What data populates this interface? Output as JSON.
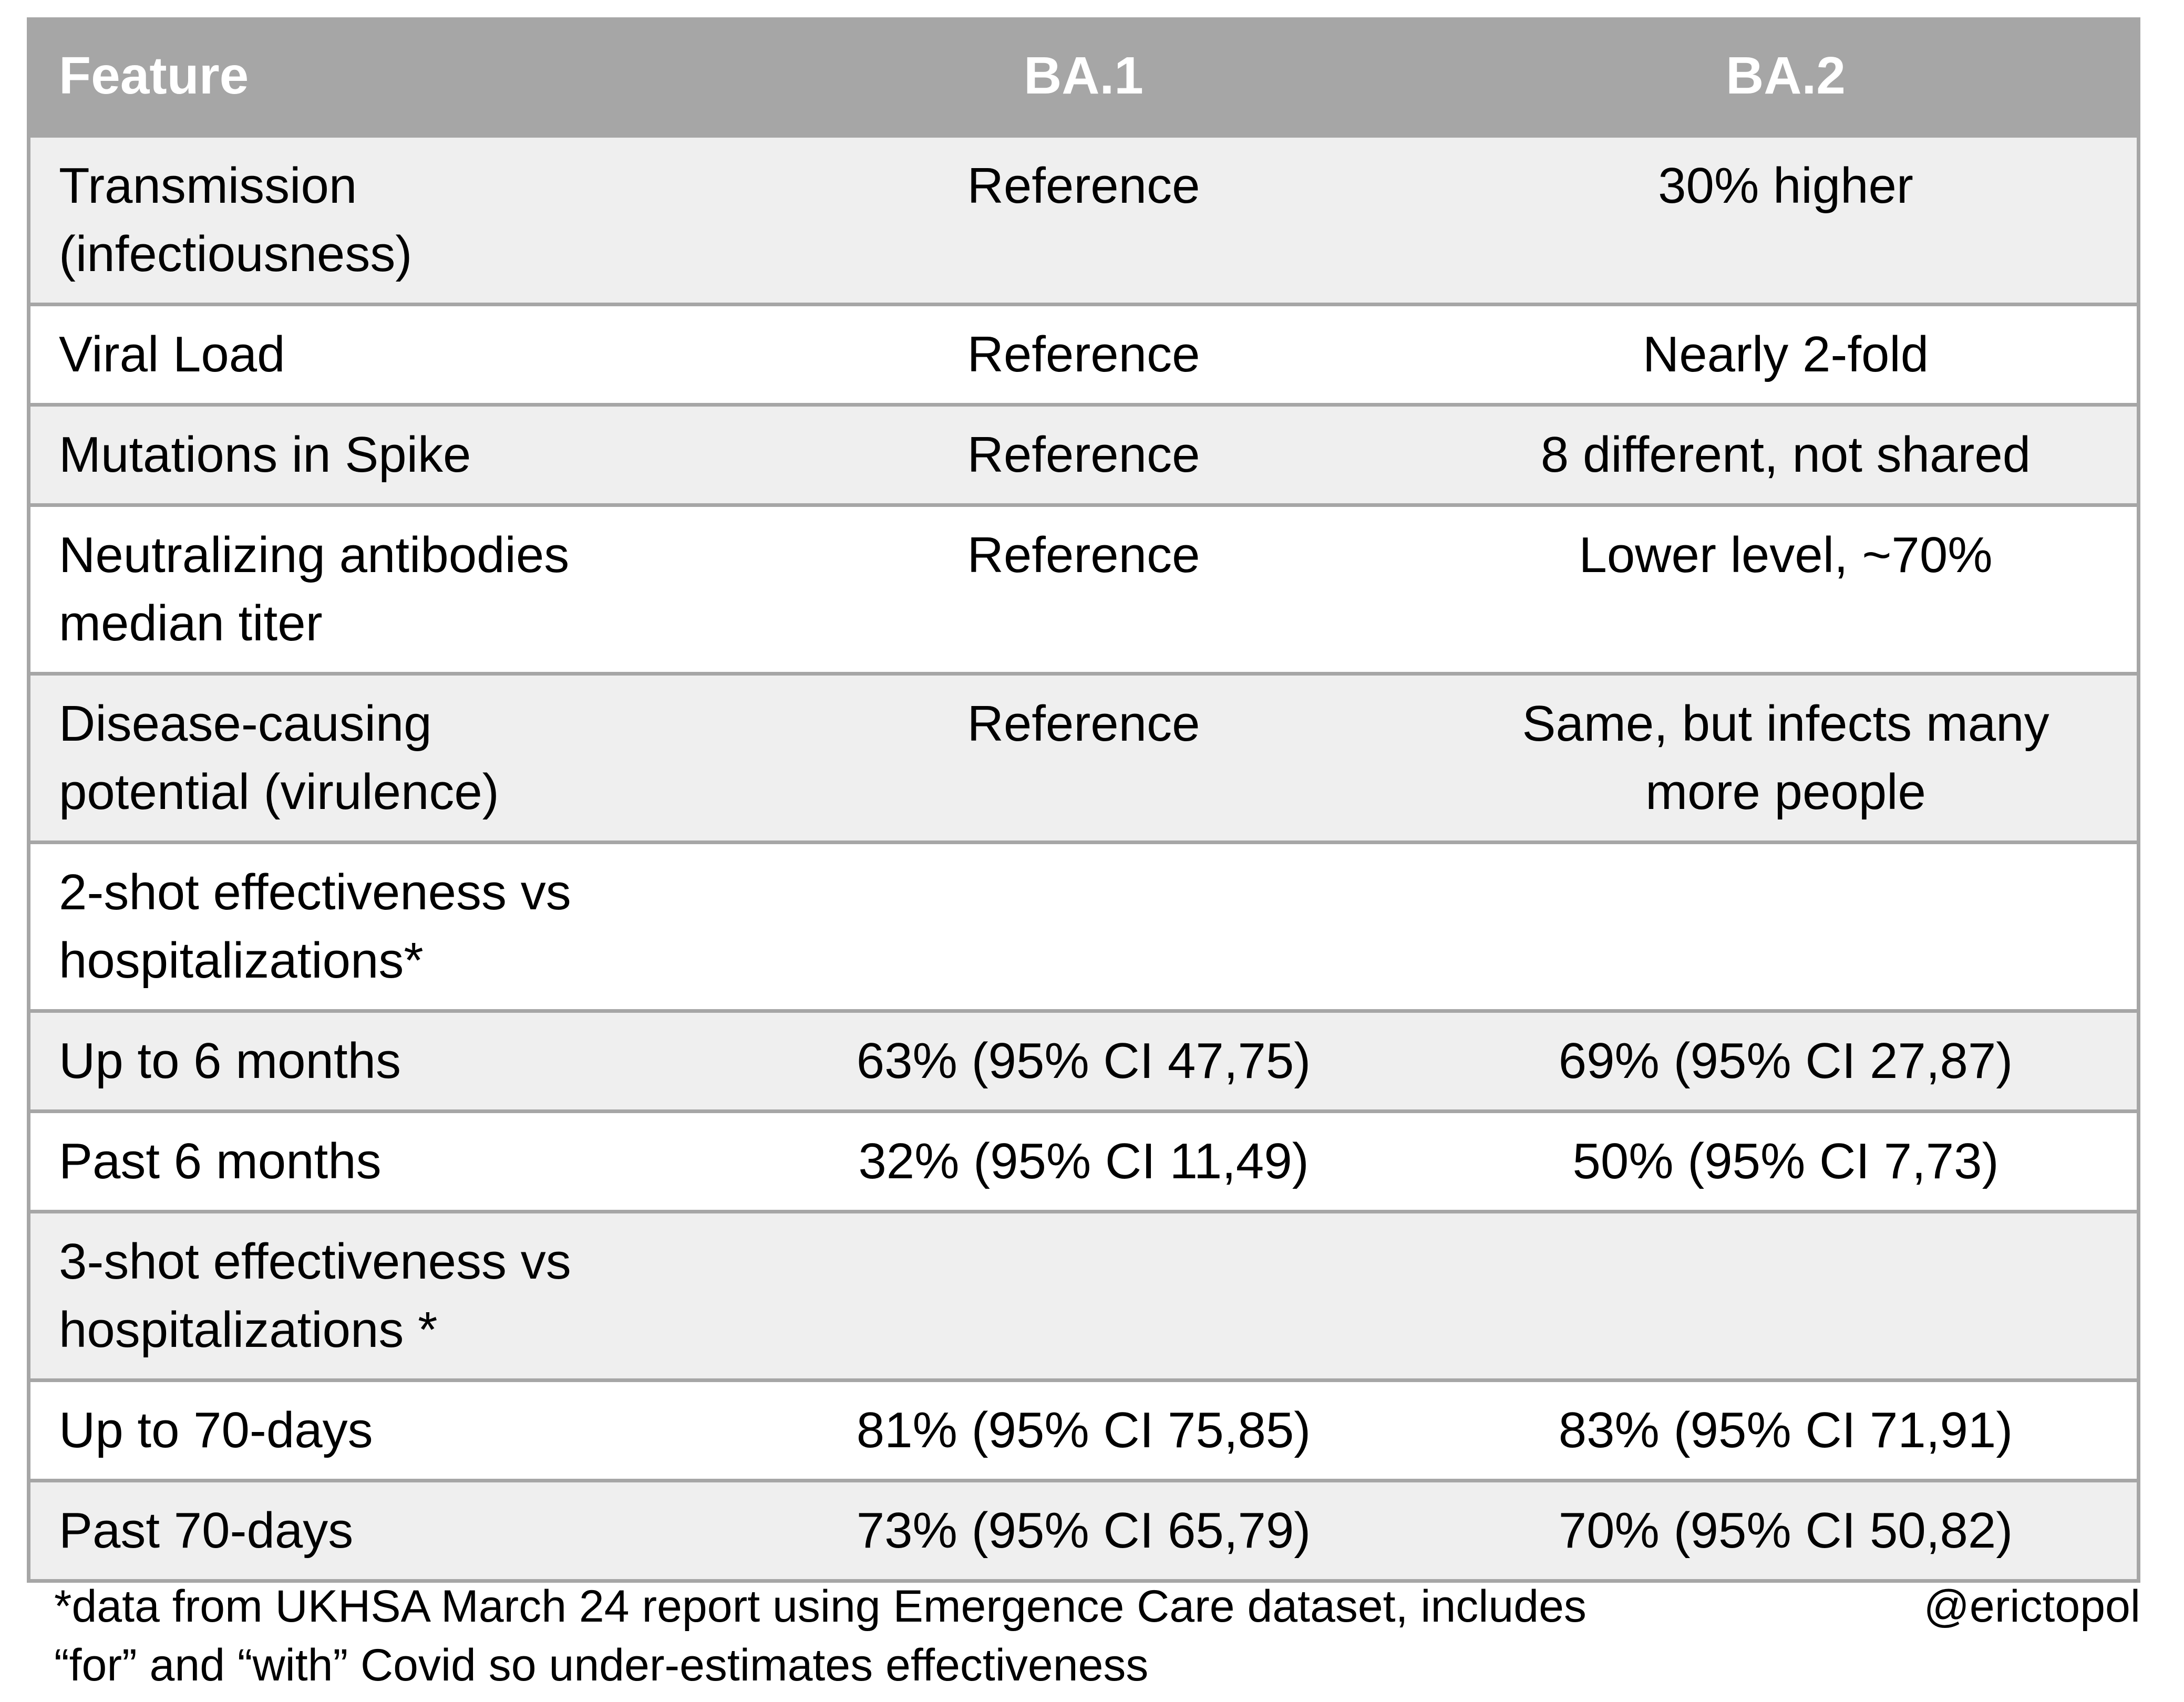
{
  "table": {
    "columns": [
      "Feature",
      "BA.1",
      "BA.2"
    ],
    "rows": [
      {
        "feature": "Transmission\n(infectiousness)",
        "ba1": "Reference",
        "ba2": "30% higher"
      },
      {
        "feature": "Viral Load",
        "ba1": "Reference",
        "ba2": "Nearly 2-fold"
      },
      {
        "feature": "Mutations in Spike",
        "ba1": "Reference",
        "ba2": "8 different, not shared"
      },
      {
        "feature": "Neutralizing antibodies\nmedian titer",
        "ba1": "Reference",
        "ba2": "Lower level, ~70%"
      },
      {
        "feature": "Disease-causing\npotential (virulence)",
        "ba1": "Reference",
        "ba2": "Same, but infects many\nmore people"
      },
      {
        "feature": "2-shot effectiveness vs\nhospitalizations*",
        "ba1": "",
        "ba2": ""
      },
      {
        "feature": "Up to 6 months",
        "ba1": "63% (95% CI 47,75)",
        "ba2": "69% (95% CI 27,87)"
      },
      {
        "feature": "Past 6 months",
        "ba1": "32% (95% CI 11,49)",
        "ba2": "50% (95% CI 7,73)"
      },
      {
        "feature": "3-shot effectiveness vs\nhospitalizations *",
        "ba1": "",
        "ba2": ""
      },
      {
        "feature": "Up to 70-days",
        "ba1": "81% (95% CI 75,85)",
        "ba2": "83% (95% CI 71,91)"
      },
      {
        "feature": "Past 70-days",
        "ba1": "73% (95% CI 65,79)",
        "ba2": "70% (95% CI 50,82)"
      }
    ]
  },
  "footer": {
    "note_line1": "*data from UKHSA March 24 report using Emergence Care dataset, includes",
    "note_line2": "“for” and “with” Covid so under-estimates effectiveness",
    "credit": "@erictopol"
  },
  "colors": {
    "header-bg": "#a6a6a6",
    "border-gray": "#a6a6a6",
    "row-alt-bg": "#efefef",
    "row-bg": "#ffffff",
    "header-text": "#ffffff",
    "body-text": "#000000"
  }
}
